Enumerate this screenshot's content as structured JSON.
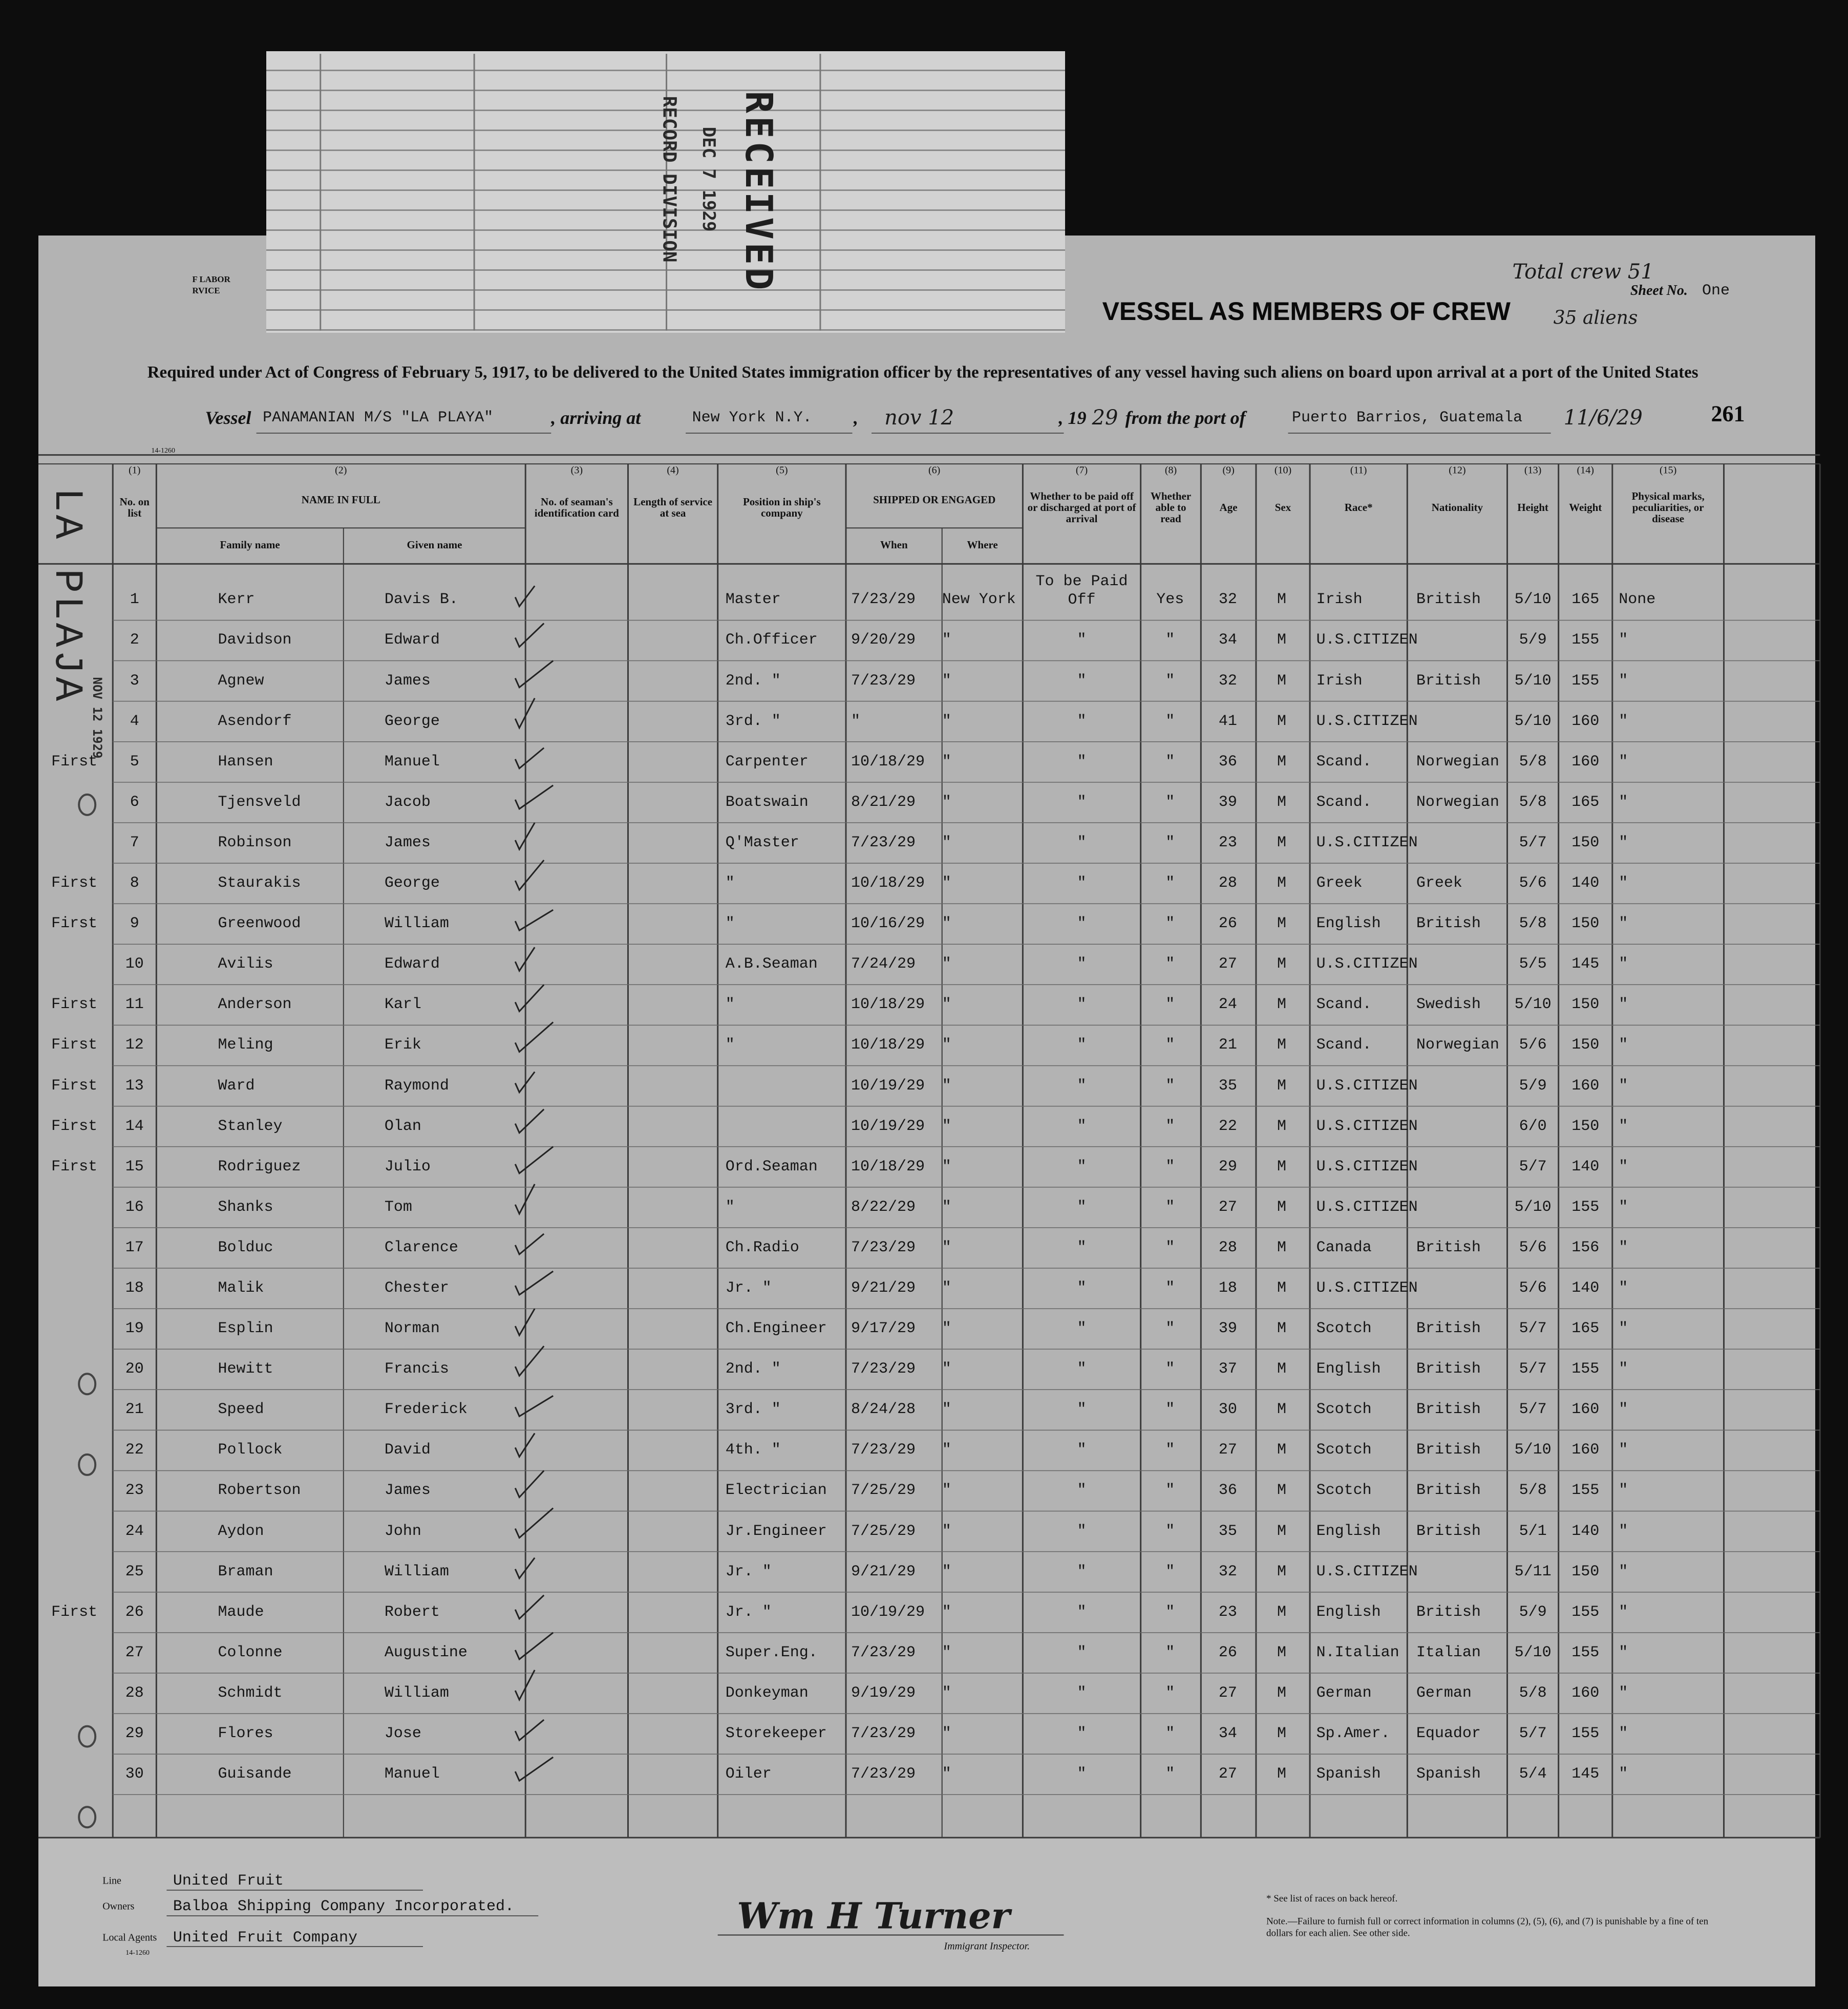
{
  "header": {
    "dept_fragment": [
      "F LABOR",
      "RVICE"
    ],
    "total_crew": "Total crew 51",
    "sheet_label": "Sheet No.",
    "sheet_number": "One",
    "aliens": "35 aliens",
    "title": "VESSEL AS MEMBERS OF CREW",
    "subtitle": "Required under Act of Congress of February 5, 1917, to be delivered to the United States immigration officer by the representatives of any vessel having such aliens on board upon arrival at a port of the United States",
    "form_number": "14-1260",
    "page_number": "261"
  },
  "stamp": {
    "received": "RECEIVED",
    "date": "DEC 7 1929",
    "division": "RECORD DIVISION"
  },
  "vessel_line": {
    "label": "Vessel",
    "name": "PANAMANIAN M/S \"LA PLAYA\"",
    "arriving_label": ", arriving at",
    "arrival_port": "New York N.Y.",
    "separator": ",",
    "date": "nov 12",
    "year_prefix": ", 19",
    "year": "29",
    "port_label": "from the port of",
    "departure_port": "Puerto Barrios, Guatemala",
    "departure_date": "11/6/29"
  },
  "margin": {
    "vessel_name": "LA PLAJA",
    "stamp": "NOV 12 1929"
  },
  "columns": [
    {
      "number": "(1)",
      "label": "No. on list"
    },
    {
      "number": "(2)",
      "label": "NAME IN FULL",
      "sub": [
        "Family name",
        "Given name"
      ]
    },
    {
      "number": "(3)",
      "label": "No. of seaman's identification card"
    },
    {
      "number": "(4)",
      "label": "Length of service at sea"
    },
    {
      "number": "(5)",
      "label": "Position in ship's company"
    },
    {
      "number": "(6)",
      "label": "SHIPPED OR ENGAGED",
      "sub": [
        "When",
        "Where"
      ]
    },
    {
      "number": "(7)",
      "label": "Whether to be paid off or discharged at port of arrival"
    },
    {
      "number": "(8)",
      "label": "Whether able to read"
    },
    {
      "number": "(9)",
      "label": "Age"
    },
    {
      "number": "(10)",
      "label": "Sex"
    },
    {
      "number": "(11)",
      "label": "Race*"
    },
    {
      "number": "(12)",
      "label": "Nationality"
    },
    {
      "number": "(13)",
      "label": "Height"
    },
    {
      "number": "(14)",
      "label": "Weight"
    },
    {
      "number": "(15)",
      "label": "Physical marks, peculiarities, or disease"
    }
  ],
  "rows": [
    [
      1,
      null,
      "Kerr",
      "Davis B.",
      "Master",
      "7/23/29",
      "New York",
      "To be Paid Off",
      "Yes",
      32,
      "M",
      "Irish",
      "British",
      "5/10",
      165,
      "None"
    ],
    [
      2,
      null,
      "Davidson",
      "Edward",
      "Ch.Officer",
      "9/20/29",
      "\"",
      "\"",
      "\"",
      34,
      "M",
      "U.S.CITIZEN",
      null,
      "5/9",
      155,
      "\""
    ],
    [
      3,
      null,
      "Agnew",
      "James",
      "2nd. \"",
      "7/23/29",
      "\"",
      "\"",
      "\"",
      32,
      "M",
      "Irish",
      "British",
      "5/10",
      155,
      "\""
    ],
    [
      4,
      null,
      "Asendorf",
      "George",
      "3rd. \"",
      "\"",
      "\"",
      "\"",
      "\"",
      41,
      "M",
      "U.S.CITIZEN",
      null,
      "5/10",
      160,
      "\""
    ],
    [
      5,
      "First",
      "Hansen",
      "Manuel",
      "Carpenter",
      "10/18/29",
      "\"",
      "\"",
      "\"",
      36,
      "M",
      "Scand.",
      "Norwegian",
      "5/8",
      160,
      "\""
    ],
    [
      6,
      null,
      "Tjensveld",
      "Jacob",
      "Boatswain",
      "8/21/29",
      "\"",
      "\"",
      "\"",
      39,
      "M",
      "Scand.",
      "Norwegian",
      "5/8",
      165,
      "\""
    ],
    [
      7,
      null,
      "Robinson",
      "James",
      "Q'Master",
      "7/23/29",
      "\"",
      "\"",
      "\"",
      23,
      "M",
      "U.S.CITIZEN",
      null,
      "5/7",
      150,
      "\""
    ],
    [
      8,
      "First",
      "Staurakis",
      "George",
      "\"",
      "10/18/29",
      "\"",
      "\"",
      "\"",
      28,
      "M",
      "Greek",
      "Greek",
      "5/6",
      140,
      "\""
    ],
    [
      9,
      "First",
      "Greenwood",
      "William",
      "\"",
      "10/16/29",
      "\"",
      "\"",
      "\"",
      26,
      "M",
      "English",
      "British",
      "5/8",
      150,
      "\""
    ],
    [
      10,
      null,
      "Avilis",
      "Edward",
      "A.B.Seaman",
      "7/24/29",
      "\"",
      "\"",
      "\"",
      27,
      "M",
      "U.S.CITIZEN",
      null,
      "5/5",
      145,
      "\""
    ],
    [
      11,
      "First",
      "Anderson",
      "Karl",
      "\"",
      "10/18/29",
      "\"",
      "\"",
      "\"",
      24,
      "M",
      "Scand.",
      "Swedish",
      "5/10",
      150,
      "\""
    ],
    [
      12,
      "First",
      "Meling",
      "Erik",
      "\"",
      "10/18/29",
      "\"",
      "\"",
      "\"",
      21,
      "M",
      "Scand.",
      "Norwegian",
      "5/6",
      150,
      "\""
    ],
    [
      13,
      "First",
      "Ward",
      "Raymond",
      null,
      "10/19/29",
      "\"",
      "\"",
      "\"",
      35,
      "M",
      "U.S.CITIZEN",
      null,
      "5/9",
      160,
      "\""
    ],
    [
      14,
      "First",
      "Stanley",
      "Olan",
      null,
      "10/19/29",
      "\"",
      "\"",
      "\"",
      22,
      "M",
      "U.S.CITIZEN",
      null,
      "6/0",
      150,
      "\""
    ],
    [
      15,
      "First",
      "Rodriguez",
      "Julio",
      "Ord.Seaman",
      "10/18/29",
      "\"",
      "\"",
      "\"",
      29,
      "M",
      "U.S.CITIZEN",
      null,
      "5/7",
      140,
      "\""
    ],
    [
      16,
      null,
      "Shanks",
      "Tom",
      "\"",
      "8/22/29",
      "\"",
      "\"",
      "\"",
      27,
      "M",
      "U.S.CITIZEN",
      null,
      "5/10",
      155,
      "\""
    ],
    [
      17,
      null,
      "Bolduc",
      "Clarence",
      "Ch.Radio",
      "7/23/29",
      "\"",
      "\"",
      "\"",
      28,
      "M",
      "Canada",
      "British",
      "5/6",
      156,
      "\""
    ],
    [
      18,
      null,
      "Malik",
      "Chester",
      "Jr. \"",
      "9/21/29",
      "\"",
      "\"",
      "\"",
      18,
      "M",
      "U.S.CITIZEN",
      null,
      "5/6",
      140,
      "\""
    ],
    [
      19,
      null,
      "Esplin",
      "Norman",
      "Ch.Engineer",
      "9/17/29",
      "\"",
      "\"",
      "\"",
      39,
      "M",
      "Scotch",
      "British",
      "5/7",
      165,
      "\""
    ],
    [
      20,
      null,
      "Hewitt",
      "Francis",
      "2nd. \"",
      "7/23/29",
      "\"",
      "\"",
      "\"",
      37,
      "M",
      "English",
      "British",
      "5/7",
      155,
      "\""
    ],
    [
      21,
      null,
      "Speed",
      "Frederick",
      "3rd. \"",
      "8/24/28",
      "\"",
      "\"",
      "\"",
      30,
      "M",
      "Scotch",
      "British",
      "5/7",
      160,
      "\""
    ],
    [
      22,
      null,
      "Pollock",
      "David",
      "4th. \"",
      "7/23/29",
      "\"",
      "\"",
      "\"",
      27,
      "M",
      "Scotch",
      "British",
      "5/10",
      160,
      "\""
    ],
    [
      23,
      null,
      "Robertson",
      "James",
      "Electrician",
      "7/25/29",
      "\"",
      "\"",
      "\"",
      36,
      "M",
      "Scotch",
      "British",
      "5/8",
      155,
      "\""
    ],
    [
      24,
      null,
      "Aydon",
      "John",
      "Jr.Engineer",
      "7/25/29",
      "\"",
      "\"",
      "\"",
      35,
      "M",
      "English",
      "British",
      "5/1",
      140,
      "\""
    ],
    [
      25,
      null,
      "Braman",
      "William",
      "Jr. \"",
      "9/21/29",
      "\"",
      "\"",
      "\"",
      32,
      "M",
      "U.S.CITIZEN",
      null,
      "5/11",
      150,
      "\""
    ],
    [
      26,
      "First",
      "Maude",
      "Robert",
      "Jr. \"",
      "10/19/29",
      "\"",
      "\"",
      "\"",
      23,
      "M",
      "English",
      "British",
      "5/9",
      155,
      "\""
    ],
    [
      27,
      null,
      "Colonne",
      "Augustine",
      "Super.Eng.",
      "7/23/29",
      "\"",
      "\"",
      "\"",
      26,
      "M",
      "N.Italian",
      "Italian",
      "5/10",
      155,
      "\""
    ],
    [
      28,
      null,
      "Schmidt",
      "William",
      "Donkeyman",
      "9/19/29",
      "\"",
      "\"",
      "\"",
      27,
      "M",
      "German",
      "German",
      "5/8",
      160,
      "\""
    ],
    [
      29,
      null,
      "Flores",
      "Jose",
      "Storekeeper",
      "7/23/29",
      "\"",
      "\"",
      "\"",
      34,
      "M",
      "Sp.Amer.",
      "Equador",
      "5/7",
      155,
      "\""
    ],
    [
      30,
      null,
      "Guisande",
      "Manuel",
      "Oiler",
      "7/23/29",
      "\"",
      "\"",
      "\"",
      27,
      "M",
      "Spanish",
      "Spanish",
      "5/4",
      145,
      "\""
    ]
  ],
  "footer": {
    "line_label": "Line",
    "line": "United Fruit",
    "owners_label": "Owners",
    "owners": "Balboa Shipping Company Incorporated.",
    "agents_label": "Local Agents",
    "agents": "United Fruit Company",
    "form_number": "14-1260",
    "signature": "Wm H Turner",
    "signature_title": "Immigrant Inspector.",
    "races_note": "* See list of races on back hereof.",
    "note": "Note.—Failure to furnish full or correct information in columns (2), (5), (6), and (7) is punishable by a fine of ten dollars for each alien. See other side."
  }
}
